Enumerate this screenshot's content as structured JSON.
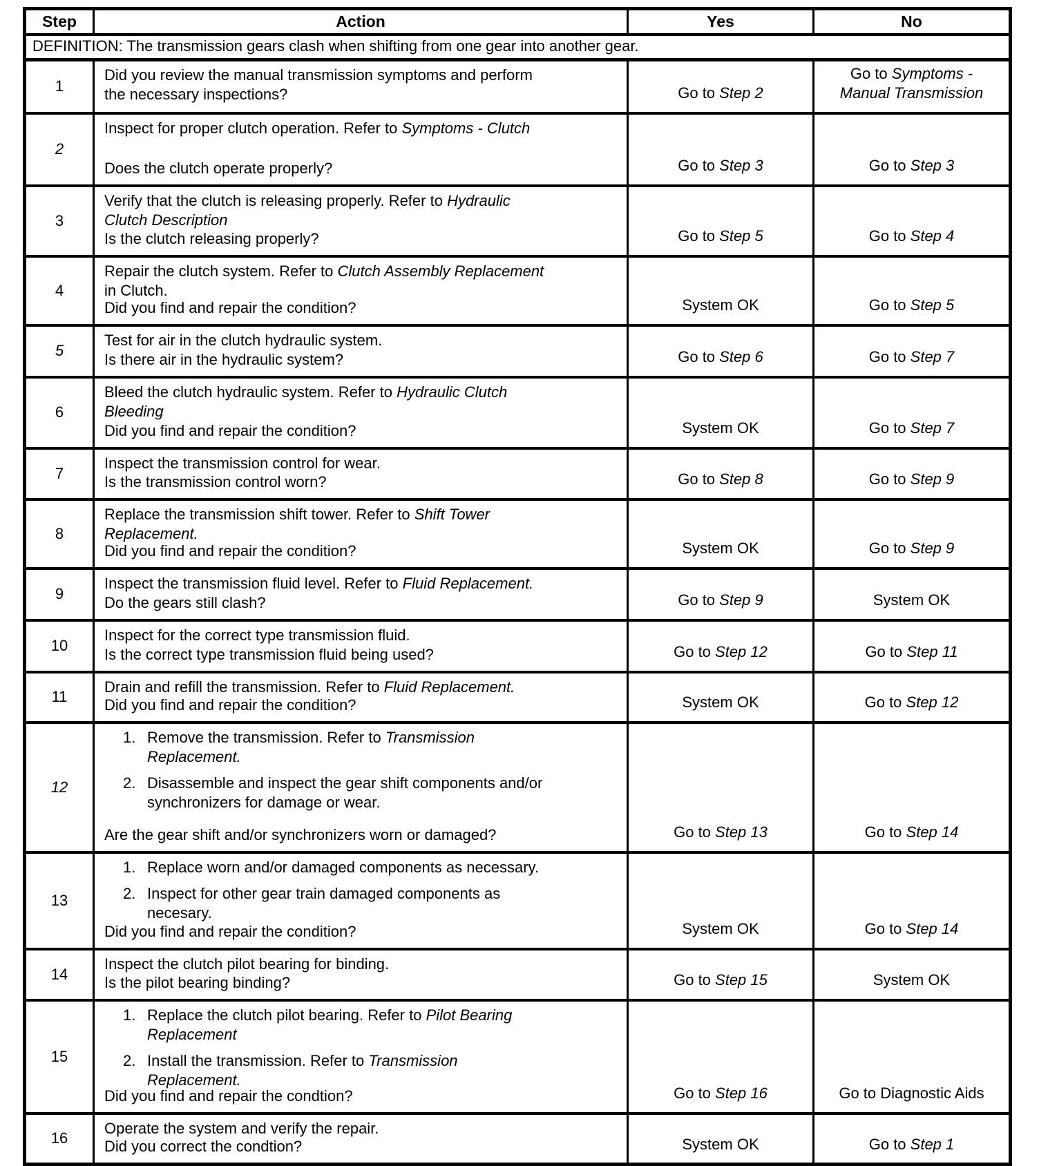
{
  "table": {
    "headers": {
      "step": "Step",
      "action": "Action",
      "yes": "Yes",
      "no": "No"
    },
    "definition": "DEFINITION: The transmission gears clash when shifting from one gear into another gear.",
    "rows": [
      {
        "step": "1",
        "step_italic": false,
        "body": [
          {
            "kind": "p",
            "lines": [
              [
                {
                  "t": "Did you review the manual transmission symptoms and perform"
                }
              ],
              [
                {
                  "t": "the necessary inspections?"
                }
              ]
            ]
          }
        ],
        "question": null,
        "yes": [
          [
            {
              "t": "Go to "
            },
            {
              "t": "Step 2",
              "i": true
            }
          ]
        ],
        "no": [
          [
            {
              "t": "Go to "
            },
            {
              "t": "Symptoms -",
              "i": true
            }
          ],
          [
            {
              "t": "Manual Transmission",
              "i": true
            }
          ]
        ]
      },
      {
        "step": "2",
        "step_italic": true,
        "body": [
          {
            "kind": "p",
            "lines": [
              [
                {
                  "t": "Inspect for proper clutch operation. Refer to "
                },
                {
                  "t": "Symptoms - Clutch",
                  "i": true
                }
              ]
            ]
          }
        ],
        "question": [
          [
            {
              "t": "Does the clutch operate properly?"
            }
          ]
        ],
        "yes": [
          [
            {
              "t": "Go to "
            },
            {
              "t": "Step 3",
              "i": true
            }
          ]
        ],
        "no": [
          [
            {
              "t": "Go to "
            },
            {
              "t": "Step 3",
              "i": true
            }
          ]
        ]
      },
      {
        "step": "3",
        "step_italic": false,
        "body": [
          {
            "kind": "p",
            "lines": [
              [
                {
                  "t": "Verify that the clutch is releasing properly. Refer to "
                },
                {
                  "t": "Hydraulic",
                  "i": true
                }
              ],
              [
                {
                  "t": "Clutch Description",
                  "i": true
                }
              ]
            ]
          }
        ],
        "question": [
          [
            {
              "t": "Is the clutch releasing properly?"
            }
          ]
        ],
        "yes": [
          [
            {
              "t": "Go to "
            },
            {
              "t": "Step 5",
              "i": true
            }
          ]
        ],
        "no": [
          [
            {
              "t": "Go to "
            },
            {
              "t": "Step 4",
              "i": true
            }
          ]
        ]
      },
      {
        "step": "4",
        "step_italic": false,
        "body": [
          {
            "kind": "p",
            "lines": [
              [
                {
                  "t": "Repair the clutch system. Refer to "
                },
                {
                  "t": "Clutch Assembly Replacement",
                  "i": true
                }
              ],
              [
                {
                  "t": "in Clutch."
                }
              ]
            ]
          }
        ],
        "question": [
          [
            {
              "t": "Did you find and repair the condition?"
            }
          ]
        ],
        "yes": [
          [
            {
              "t": "System OK"
            }
          ]
        ],
        "no": [
          [
            {
              "t": "Go to "
            },
            {
              "t": "Step 5",
              "i": true
            }
          ]
        ]
      },
      {
        "step": "5",
        "step_italic": true,
        "body": [
          {
            "kind": "p",
            "lines": [
              [
                {
                  "t": "Test for air in the clutch hydraulic system."
                }
              ]
            ]
          }
        ],
        "question": [
          [
            {
              "t": "Is there air in the hydraulic system?"
            }
          ]
        ],
        "yes": [
          [
            {
              "t": "Go to "
            },
            {
              "t": "Step 6",
              "i": true
            }
          ]
        ],
        "no": [
          [
            {
              "t": "Go to "
            },
            {
              "t": "Step 7",
              "i": true
            }
          ]
        ]
      },
      {
        "step": "6",
        "step_italic": false,
        "body": [
          {
            "kind": "p",
            "lines": [
              [
                {
                  "t": "Bleed the clutch hydraulic system. Refer to "
                },
                {
                  "t": "Hydraulic Clutch",
                  "i": true
                }
              ],
              [
                {
                  "t": "Bleeding",
                  "i": true
                }
              ]
            ]
          }
        ],
        "question": [
          [
            {
              "t": "Did you find and repair the condition?"
            }
          ]
        ],
        "yes": [
          [
            {
              "t": "System OK"
            }
          ]
        ],
        "no": [
          [
            {
              "t": "Go to "
            },
            {
              "t": "Step 7",
              "i": true
            }
          ]
        ]
      },
      {
        "step": "7",
        "step_italic": false,
        "body": [
          {
            "kind": "p",
            "lines": [
              [
                {
                  "t": "Inspect the transmission control for wear."
                }
              ]
            ]
          }
        ],
        "question": [
          [
            {
              "t": "Is the transmission control worn?"
            }
          ]
        ],
        "yes": [
          [
            {
              "t": "Go to "
            },
            {
              "t": "Step 8",
              "i": true
            }
          ]
        ],
        "no": [
          [
            {
              "t": "Go to "
            },
            {
              "t": "Step 9",
              "i": true
            }
          ]
        ]
      },
      {
        "step": "8",
        "step_italic": false,
        "body": [
          {
            "kind": "p",
            "lines": [
              [
                {
                  "t": "Replace the transmission shift tower. Refer to "
                },
                {
                  "t": "Shift Tower",
                  "i": true
                }
              ],
              [
                {
                  "t": "Replacement.",
                  "i": true
                }
              ]
            ]
          }
        ],
        "question": [
          [
            {
              "t": "Did you find and repair the condition?"
            }
          ]
        ],
        "yes": [
          [
            {
              "t": "System OK"
            }
          ]
        ],
        "no": [
          [
            {
              "t": "Go to "
            },
            {
              "t": "Step 9",
              "i": true
            }
          ]
        ]
      },
      {
        "step": "9",
        "step_italic": false,
        "body": [
          {
            "kind": "p",
            "lines": [
              [
                {
                  "t": "Inspect the transmission fluid level. Refer to "
                },
                {
                  "t": "Fluid Replacement.",
                  "i": true
                }
              ]
            ]
          }
        ],
        "question": [
          [
            {
              "t": "Do the gears still clash?"
            }
          ]
        ],
        "yes": [
          [
            {
              "t": "Go to "
            },
            {
              "t": "Step 9",
              "i": true
            }
          ]
        ],
        "no": [
          [
            {
              "t": "System OK"
            }
          ]
        ]
      },
      {
        "step": "10",
        "step_italic": false,
        "body": [
          {
            "kind": "p",
            "lines": [
              [
                {
                  "t": "Inspect for the correct type transmission fluid."
                }
              ]
            ]
          }
        ],
        "question": [
          [
            {
              "t": "Is the correct type transmission fluid being used?"
            }
          ]
        ],
        "yes": [
          [
            {
              "t": "Go to "
            },
            {
              "t": "Step 12",
              "i": true
            }
          ]
        ],
        "no": [
          [
            {
              "t": "Go to "
            },
            {
              "t": "Step 11",
              "i": true
            }
          ]
        ]
      },
      {
        "step": "11",
        "step_italic": false,
        "body": [
          {
            "kind": "p",
            "lines": [
              [
                {
                  "t": "Drain and refill the transmission. Refer to "
                },
                {
                  "t": "Fluid Replacement.",
                  "i": true
                }
              ]
            ]
          }
        ],
        "question": [
          [
            {
              "t": "Did you find and repair the condition?"
            }
          ]
        ],
        "yes": [
          [
            {
              "t": "System OK"
            }
          ]
        ],
        "no": [
          [
            {
              "t": "Go to "
            },
            {
              "t": "Step 12",
              "i": true
            }
          ]
        ]
      },
      {
        "step": "12",
        "step_italic": true,
        "body": [
          {
            "kind": "li",
            "num": "1.",
            "lines": [
              [
                {
                  "t": "Remove the transmission. Refer to "
                },
                {
                  "t": "Transmission",
                  "i": true
                }
              ],
              [
                {
                  "t": "Replacement.",
                  "i": true
                }
              ]
            ]
          },
          {
            "kind": "li",
            "num": "2.",
            "lines": [
              [
                {
                  "t": "Disassemble and inspect the gear shift components and/or"
                }
              ],
              [
                {
                  "t": "synchronizers for damage or wear."
                }
              ]
            ]
          }
        ],
        "question": [
          [
            {
              "t": "Are the gear shift and/or synchronizers worn or damaged?"
            }
          ]
        ],
        "yes": [
          [
            {
              "t": "Go to "
            },
            {
              "t": "Step 13",
              "i": true
            }
          ]
        ],
        "no": [
          [
            {
              "t": "Go to "
            },
            {
              "t": "Step 14",
              "i": true
            }
          ]
        ]
      },
      {
        "step": "13",
        "step_italic": false,
        "body": [
          {
            "kind": "li",
            "num": "1.",
            "lines": [
              [
                {
                  "t": "Replace worn and/or damaged components as necessary."
                }
              ]
            ]
          },
          {
            "kind": "li",
            "num": "2.",
            "lines": [
              [
                {
                  "t": "Inspect for other gear train damaged components as"
                }
              ],
              [
                {
                  "t": "necesary."
                }
              ]
            ]
          }
        ],
        "question": [
          [
            {
              "t": "Did you find and repair the condition?"
            }
          ]
        ],
        "yes": [
          [
            {
              "t": "System OK"
            }
          ]
        ],
        "no": [
          [
            {
              "t": "Go to "
            },
            {
              "t": "Step 14",
              "i": true
            }
          ]
        ]
      },
      {
        "step": "14",
        "step_italic": false,
        "body": [
          {
            "kind": "p",
            "lines": [
              [
                {
                  "t": "Inspect the clutch pilot bearing for binding."
                }
              ]
            ]
          }
        ],
        "question": [
          [
            {
              "t": "Is the pilot bearing binding?"
            }
          ]
        ],
        "yes": [
          [
            {
              "t": "Go to "
            },
            {
              "t": "Step 15",
              "i": true
            }
          ]
        ],
        "no": [
          [
            {
              "t": "System OK"
            }
          ]
        ]
      },
      {
        "step": "15",
        "step_italic": false,
        "body": [
          {
            "kind": "li",
            "num": "1.",
            "lines": [
              [
                {
                  "t": "Replace the clutch pilot bearing. Refer to "
                },
                {
                  "t": "Pilot Bearing",
                  "i": true
                }
              ],
              [
                {
                  "t": "Replacement",
                  "i": true
                }
              ]
            ]
          },
          {
            "kind": "li",
            "num": "2.",
            "lines": [
              [
                {
                  "t": "Install the transmission. Refer to "
                },
                {
                  "t": "Transmission",
                  "i": true
                }
              ],
              [
                {
                  "t": "Replacement.",
                  "i": true
                }
              ]
            ]
          }
        ],
        "question": [
          [
            {
              "t": "Did you find and repair the condtion?"
            }
          ]
        ],
        "yes": [
          [
            {
              "t": "Go to "
            },
            {
              "t": "Step 16",
              "i": true
            }
          ]
        ],
        "no": [
          [
            {
              "t": "Go to Diagnostic Aids"
            }
          ]
        ]
      },
      {
        "step": "16",
        "step_italic": false,
        "body": [
          {
            "kind": "p",
            "lines": [
              [
                {
                  "t": "Operate the system and verify the repair."
                }
              ]
            ]
          }
        ],
        "question": [
          [
            {
              "t": "Did you correct the condtion?"
            }
          ]
        ],
        "yes": [
          [
            {
              "t": "System OK"
            }
          ]
        ],
        "no": [
          [
            {
              "t": "Go to "
            },
            {
              "t": "Step 1",
              "i": true
            }
          ]
        ]
      }
    ]
  }
}
